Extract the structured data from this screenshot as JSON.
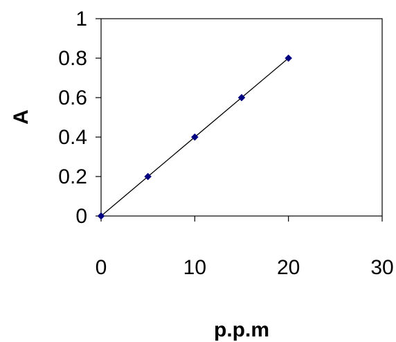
{
  "chart_data": {
    "type": "scatter",
    "title": "",
    "xlabel": "p.p.m",
    "ylabel": "A",
    "xlim": [
      0,
      30
    ],
    "ylim": [
      0,
      1
    ],
    "x_ticks": [
      0,
      10,
      20,
      30
    ],
    "y_ticks": [
      0,
      0.2,
      0.4,
      0.6,
      0.8,
      1
    ],
    "grid": false,
    "legend": "none",
    "series": [
      {
        "x": [
          0,
          5,
          10,
          15,
          20
        ],
        "y": [
          0,
          0.2,
          0.4,
          0.6,
          0.8
        ],
        "marker": "diamond",
        "marker_color": "#000080",
        "line": "linear-fit",
        "line_color": "#000000"
      }
    ]
  }
}
